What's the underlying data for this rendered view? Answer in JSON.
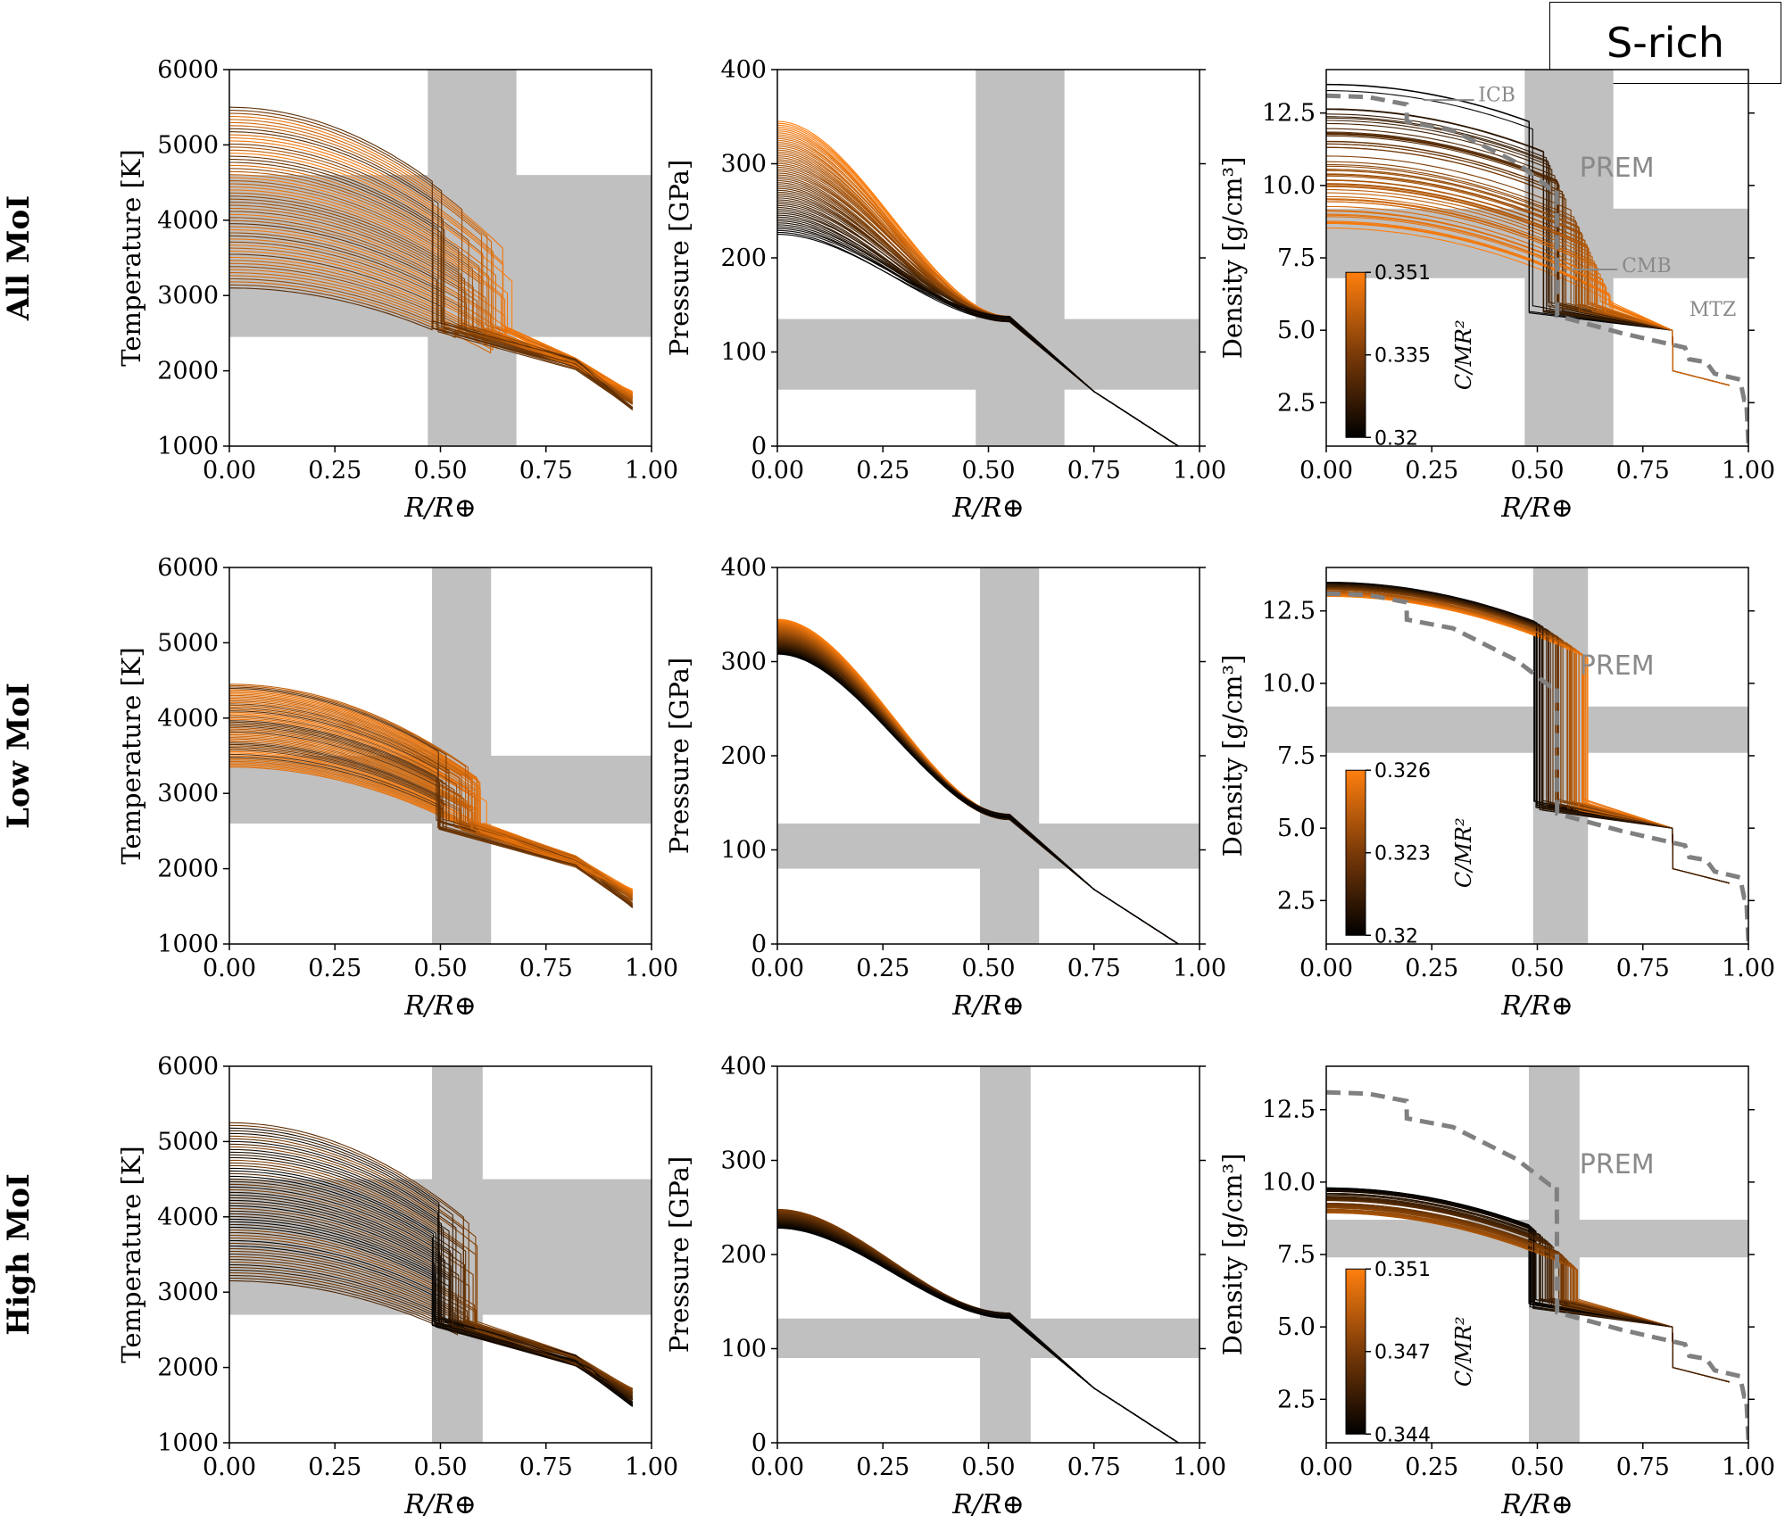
{
  "figure_tag": "S-rich",
  "row_labels": [
    "All MoI",
    "Low MoI",
    "High MoI"
  ],
  "annotations": {
    "prem": "PREM",
    "icb": "ICB",
    "cmb": "CMB",
    "mtz": "MTZ"
  },
  "colorbar_label": "C/MR²",
  "colors": {
    "low_cmap": "#000000",
    "high_cmap": "#ff7f0e",
    "band": "#c0c0c0",
    "prem": "#808080"
  },
  "chart_data": [
    {
      "row": 0,
      "col": 0,
      "type": "line",
      "ylabel": "Temperature [K]",
      "xlabel": "R/R⊕",
      "xlim": [
        0,
        1
      ],
      "ylim": [
        1000,
        6000
      ],
      "xticks": [
        "0.00",
        "0.25",
        "0.50",
        "0.75",
        "1.00"
      ],
      "yticks": [
        "1000",
        "2000",
        "3000",
        "4000",
        "5000",
        "6000"
      ],
      "vband": [
        0.47,
        0.68
      ],
      "hband": [
        2450,
        4600
      ],
      "profiles": {
        "core_center": [
          3100,
          5500
        ],
        "cmb_r": [
          0.48,
          0.67
        ]
      }
    },
    {
      "row": 0,
      "col": 1,
      "type": "line",
      "ylabel": "Pressure [GPa]",
      "xlabel": "R/R⊕",
      "xlim": [
        0,
        1
      ],
      "ylim": [
        0,
        400
      ],
      "xticks": [
        "0.00",
        "0.25",
        "0.50",
        "0.75",
        "1.00"
      ],
      "yticks": [
        "0",
        "100",
        "200",
        "300",
        "400"
      ],
      "vband": [
        0.47,
        0.68
      ],
      "hband": [
        60,
        135
      ],
      "profiles": {
        "center": [
          225,
          345
        ]
      }
    },
    {
      "row": 0,
      "col": 2,
      "type": "line",
      "ylabel": "Density [g/cm³]",
      "xlabel": "R/R⊕",
      "xlim": [
        0,
        1
      ],
      "ylim": [
        1,
        14
      ],
      "xticks": [
        "0.00",
        "0.25",
        "0.50",
        "0.75",
        "1.00"
      ],
      "yticks": [
        "2.5",
        "5.0",
        "7.5",
        "10.0",
        "12.5"
      ],
      "vband": [
        0.47,
        0.68
      ],
      "hband": [
        6.8,
        9.2
      ],
      "colorbar": {
        "ticks": [
          "0.351",
          "0.335",
          "0.32"
        ]
      },
      "profiles": {
        "center": [
          8.5,
          13.5
        ],
        "cmb_r": [
          0.48,
          0.68
        ]
      }
    },
    {
      "row": 1,
      "col": 0,
      "type": "line",
      "ylabel": "Temperature [K]",
      "xlabel": "R/R⊕",
      "xlim": [
        0,
        1
      ],
      "ylim": [
        1000,
        6000
      ],
      "xticks": [
        "0.00",
        "0.25",
        "0.50",
        "0.75",
        "1.00"
      ],
      "yticks": [
        "1000",
        "2000",
        "3000",
        "4000",
        "5000",
        "6000"
      ],
      "vband": [
        0.48,
        0.62
      ],
      "hband": [
        2600,
        3500
      ],
      "profiles": {
        "core_center": [
          3350,
          4450
        ],
        "cmb_r": [
          0.49,
          0.61
        ]
      }
    },
    {
      "row": 1,
      "col": 1,
      "type": "line",
      "ylabel": "Pressure [GPa]",
      "xlabel": "R/R⊕",
      "xlim": [
        0,
        1
      ],
      "ylim": [
        0,
        400
      ],
      "xticks": [
        "0.00",
        "0.25",
        "0.50",
        "0.75",
        "1.00"
      ],
      "yticks": [
        "0",
        "100",
        "200",
        "300",
        "400"
      ],
      "vband": [
        0.48,
        0.62
      ],
      "hband": [
        80,
        128
      ],
      "profiles": {
        "center": [
          308,
          345
        ]
      }
    },
    {
      "row": 1,
      "col": 2,
      "type": "line",
      "ylabel": "Density [g/cm³]",
      "xlabel": "R/R⊕",
      "xlim": [
        0,
        1
      ],
      "ylim": [
        1,
        14
      ],
      "xticks": [
        "0.00",
        "0.25",
        "0.50",
        "0.75",
        "1.00"
      ],
      "yticks": [
        "2.5",
        "5.0",
        "7.5",
        "10.0",
        "12.5"
      ],
      "vband": [
        0.49,
        0.62
      ],
      "hband": [
        7.6,
        9.2
      ],
      "colorbar": {
        "ticks": [
          "0.326",
          "0.323",
          "0.32"
        ]
      },
      "profiles": {
        "center": [
          13.0,
          13.5
        ],
        "cmb_r": [
          0.49,
          0.62
        ]
      }
    },
    {
      "row": 2,
      "col": 0,
      "type": "line",
      "ylabel": "Temperature [K]",
      "xlabel": "R/R⊕",
      "xlim": [
        0,
        1
      ],
      "ylim": [
        1000,
        6000
      ],
      "xticks": [
        "0.00",
        "0.25",
        "0.50",
        "0.75",
        "1.00"
      ],
      "yticks": [
        "1000",
        "2000",
        "3000",
        "4000",
        "5000",
        "6000"
      ],
      "vband": [
        0.48,
        0.6
      ],
      "hband": [
        2700,
        4500
      ],
      "profiles": {
        "core_center": [
          3150,
          5250
        ],
        "cmb_r": [
          0.48,
          0.59
        ]
      }
    },
    {
      "row": 2,
      "col": 1,
      "type": "line",
      "ylabel": "Pressure [GPa]",
      "xlabel": "R/R⊕",
      "xlim": [
        0,
        1
      ],
      "ylim": [
        0,
        400
      ],
      "xticks": [
        "0.00",
        "0.25",
        "0.50",
        "0.75",
        "1.00"
      ],
      "yticks": [
        "0",
        "100",
        "200",
        "300",
        "400"
      ],
      "vband": [
        0.48,
        0.6
      ],
      "hband": [
        90,
        132
      ],
      "profiles": {
        "center": [
          228,
          248
        ]
      }
    },
    {
      "row": 2,
      "col": 2,
      "type": "line",
      "ylabel": "Density [g/cm³]",
      "xlabel": "R/R⊕",
      "xlim": [
        0,
        1
      ],
      "ylim": [
        1,
        14
      ],
      "xticks": [
        "0.00",
        "0.25",
        "0.50",
        "0.75",
        "1.00"
      ],
      "yticks": [
        "2.5",
        "5.0",
        "7.5",
        "10.0",
        "12.5"
      ],
      "vband": [
        0.48,
        0.6
      ],
      "hband": [
        7.4,
        8.7
      ],
      "colorbar": {
        "ticks": [
          "0.351",
          "0.347",
          "0.344"
        ]
      },
      "profiles": {
        "center": [
          8.9,
          9.8
        ],
        "cmb_r": [
          0.48,
          0.6
        ]
      }
    }
  ],
  "prem_profile": [
    [
      0,
      13.1
    ],
    [
      0.1,
      13.05
    ],
    [
      0.19,
      12.8
    ],
    [
      0.191,
      12.2
    ],
    [
      0.3,
      11.9
    ],
    [
      0.45,
      10.8
    ],
    [
      0.53,
      9.9
    ],
    [
      0.546,
      9.9
    ],
    [
      0.547,
      5.5
    ],
    [
      0.7,
      4.9
    ],
    [
      0.85,
      4.4
    ],
    [
      0.86,
      4.0
    ],
    [
      0.9,
      3.9
    ],
    [
      0.92,
      3.5
    ],
    [
      0.98,
      3.3
    ],
    [
      0.99,
      2.6
    ],
    [
      0.995,
      2.6
    ],
    [
      1.0,
      1.1
    ]
  ]
}
